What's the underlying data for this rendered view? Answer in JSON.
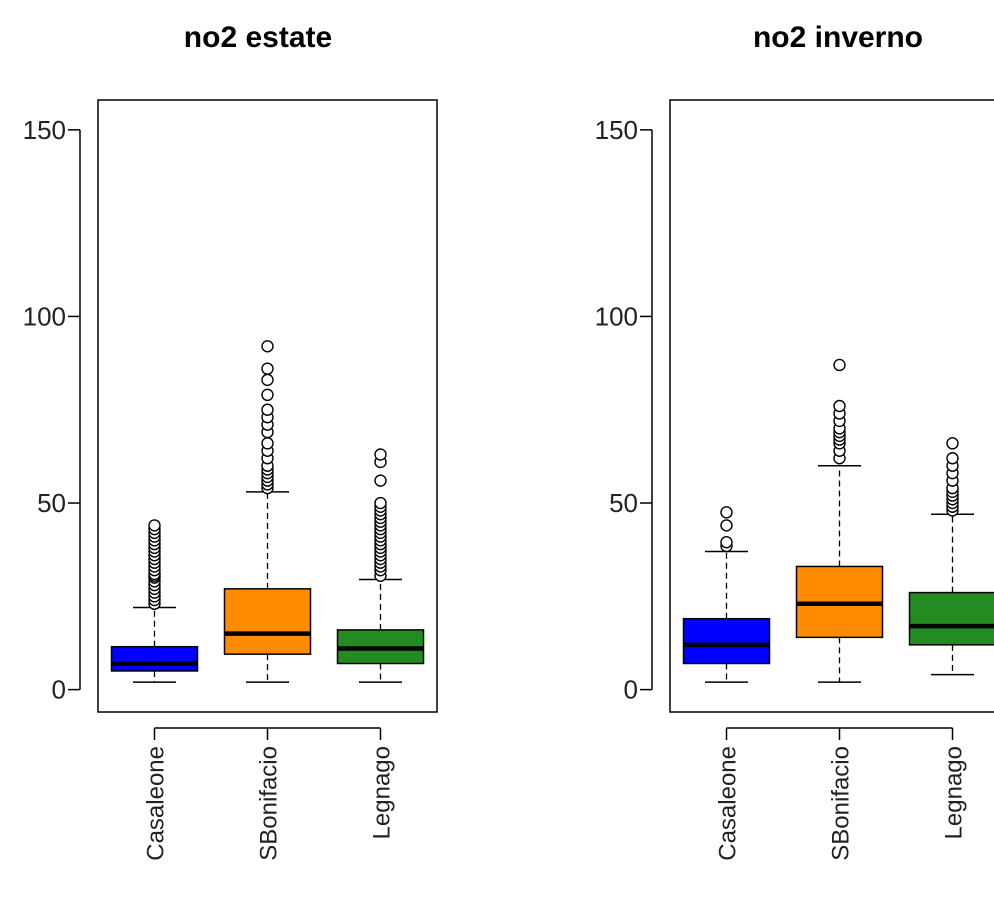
{
  "chart_data": [
    {
      "type": "box",
      "title": "no2 estate",
      "ylim": [
        -6,
        158
      ],
      "yticks": [
        0,
        50,
        100,
        150
      ],
      "categories": [
        "Casaleone",
        "SBonifacio",
        "Legnago"
      ],
      "colors": [
        "#0000ff",
        "#ff8c00",
        "#228b22"
      ],
      "boxes": [
        {
          "lower_whisker": 2,
          "q1": 5,
          "median": 7,
          "q3": 11.5,
          "upper_whisker": 22,
          "outliers": [
            23,
            24,
            25,
            26,
            27,
            28,
            29,
            30,
            30.5,
            31,
            32,
            33,
            34,
            35,
            36,
            37,
            38,
            39,
            40,
            41,
            42,
            43,
            44
          ]
        },
        {
          "lower_whisker": 2,
          "q1": 9.5,
          "median": 15,
          "q3": 27,
          "upper_whisker": 53,
          "outliers": [
            54,
            55,
            56,
            57,
            58,
            59,
            60,
            62,
            64,
            66,
            69,
            71,
            73,
            75,
            79,
            83,
            86,
            92
          ]
        },
        {
          "lower_whisker": 2,
          "q1": 7,
          "median": 11,
          "q3": 16,
          "upper_whisker": 29.5,
          "outliers": [
            30.5,
            32,
            33,
            34,
            35,
            36,
            37,
            38,
            39,
            40,
            41,
            42,
            43,
            44,
            45,
            46,
            47,
            48,
            49,
            50,
            56,
            61,
            63
          ]
        }
      ]
    },
    {
      "type": "box",
      "title": "no2 inverno",
      "ylim": [
        -6,
        158
      ],
      "yticks": [
        0,
        50,
        100,
        150
      ],
      "categories": [
        "Casaleone",
        "SBonifacio",
        "Legnago"
      ],
      "colors": [
        "#0000ff",
        "#ff8c00",
        "#228b22"
      ],
      "boxes": [
        {
          "lower_whisker": 2,
          "q1": 7,
          "median": 12,
          "q3": 19,
          "upper_whisker": 37,
          "outliers": [
            38.5,
            39.5,
            44,
            47.5
          ]
        },
        {
          "lower_whisker": 2,
          "q1": 14,
          "median": 23,
          "q3": 33,
          "upper_whisker": 60,
          "outliers": [
            62,
            64,
            66,
            67,
            68,
            69,
            70,
            72,
            74,
            76,
            87
          ]
        },
        {
          "lower_whisker": 4,
          "q1": 12,
          "median": 17,
          "q3": 26,
          "upper_whisker": 47,
          "outliers": [
            48,
            49,
            50,
            51,
            52,
            53,
            54,
            56,
            58,
            60,
            62,
            66
          ]
        }
      ]
    }
  ]
}
